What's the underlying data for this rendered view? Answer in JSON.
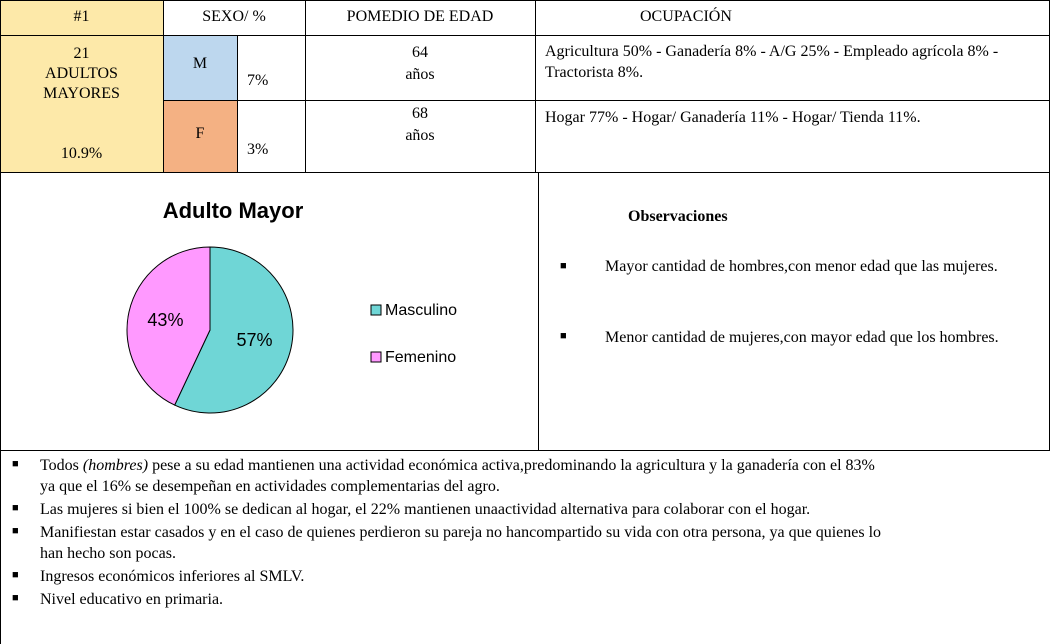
{
  "header": {
    "col1": "#1",
    "col2": "SEXO/ %",
    "col3": "POMEDIO DE EDAD",
    "col4": "OCUPACIÓN"
  },
  "group": {
    "count": "21",
    "label1": "ADULTOS",
    "label2": "MAYORES",
    "percent": "10.9%"
  },
  "rows": [
    {
      "sex": "M",
      "percent": "7%",
      "age": "64",
      "age_unit": "años",
      "occupation": "Agricultura 50% - Ganadería 8% - A/G 25% - Empleado agrícola 8% - Tractorista 8%."
    },
    {
      "sex": "F",
      "percent": "3%",
      "age": "68",
      "age_unit": "años",
      "occupation": "Hogar 77% - Hogar/ Ganadería 11% - Hogar/ Tienda 11%."
    }
  ],
  "chart_data": {
    "type": "pie",
    "title": "Adulto Mayor",
    "categories": [
      "Masculino",
      "Femenino"
    ],
    "values": [
      57,
      43
    ],
    "value_labels": [
      "57%",
      "43%"
    ],
    "colors": [
      "#6fd6d6",
      "#ff99ff"
    ],
    "legend": "right"
  },
  "observations": {
    "title": "Observaciones",
    "items": [
      "Mayor cantidad de hombres,con menor edad que las mujeres.",
      "Menor cantidad de mujeres,con mayor edad que los hombres."
    ]
  },
  "notes": [
    {
      "before": "Todos ",
      "italic": "(hombres)",
      "after": " pese a su edad mantienen una actividad económica activa,predominando la agricultura y la ganadería con el 83% ya que el 16% se desempeñan en actividades complementarias del agro."
    },
    {
      "text": "Las mujeres si bien el 100% se dedican al hogar, el 22% mantienen unaactividad alternativa para colaborar con el hogar."
    },
    {
      "text": "Manifiestan estar casados y en el caso de quienes perdieron su pareja no hancompartido su vida con otra persona, ya que quienes lo han hecho son pocas."
    },
    {
      "text": "Ingresos económicos inferiores al SMLV."
    },
    {
      "text": "Nivel educativo en primaria."
    }
  ]
}
